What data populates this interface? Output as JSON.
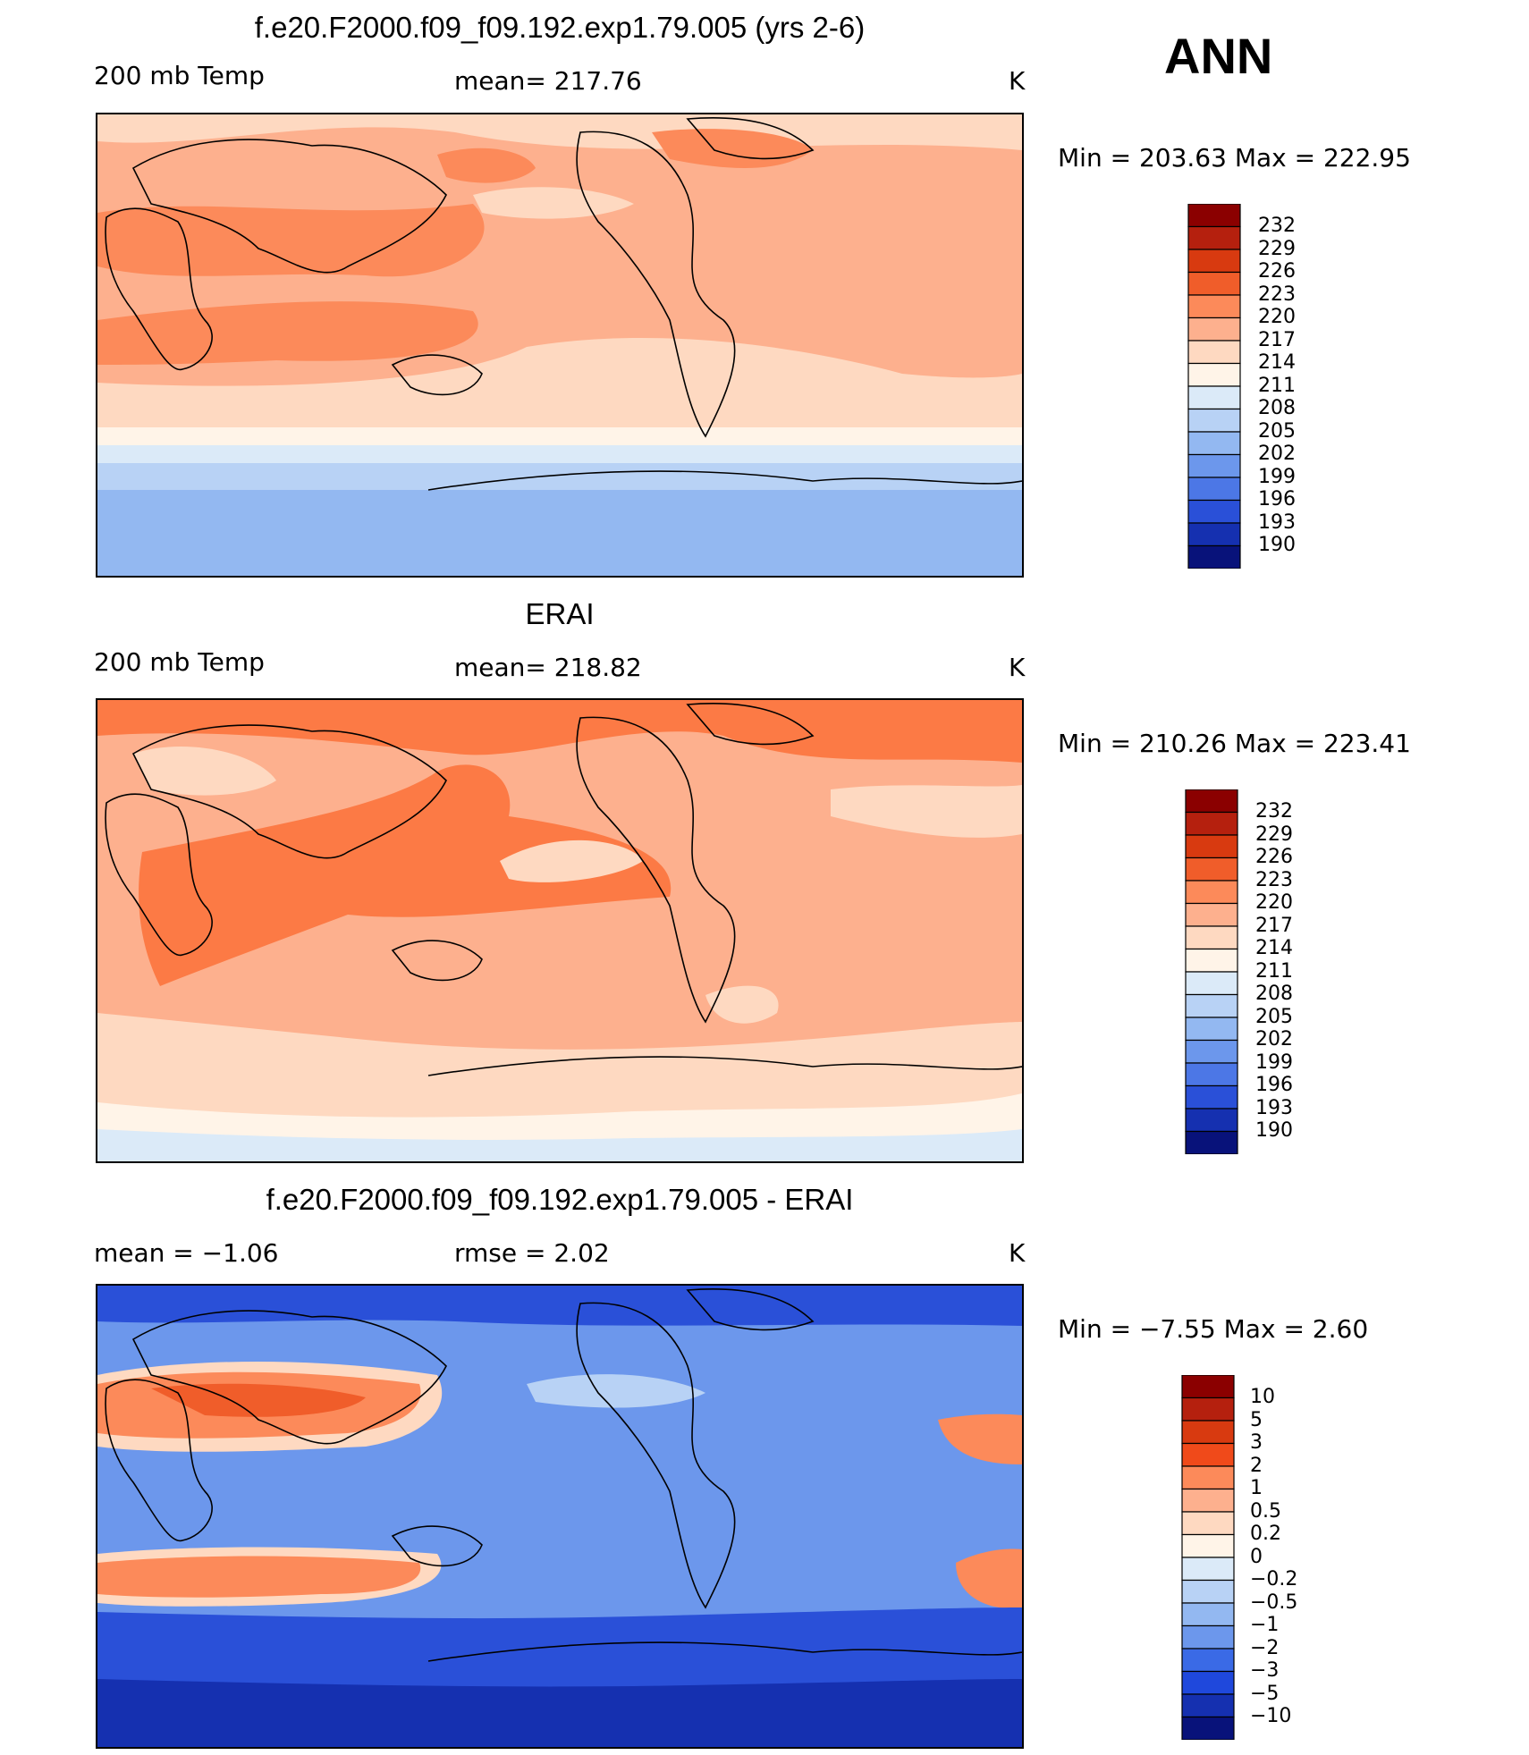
{
  "season": "ANN",
  "panels": [
    {
      "title": "f.e20.F2000.f09_f09.192.exp1.79.005 (yrs 2-6)",
      "left_label": "200 mb Temp",
      "center_label": "mean= 217.76",
      "units": "K",
      "minmax": "Min  =  203.63  Max  =  222.95",
      "colorbar": {
        "labels": [
          "232",
          "229",
          "226",
          "223",
          "220",
          "217",
          "214",
          "211",
          "208",
          "205",
          "202",
          "199",
          "196",
          "193",
          "190"
        ],
        "colors": [
          "#8b0000",
          "#b5200e",
          "#d83a10",
          "#f05d2a",
          "#fc8a5a",
          "#fdb08e",
          "#fed9c1",
          "#fff4e8",
          "#dbeaf8",
          "#b8d2f5",
          "#93b8f1",
          "#6c97ec",
          "#4c77e6",
          "#2a50d8",
          "#1530b0",
          "#08127a"
        ]
      },
      "map_fill": {
        "base": "#fdb08e",
        "warm": "#fc8a5a",
        "cool": "#fed9c1",
        "cold1": "#fff4e8",
        "cold2": "#dbeaf8",
        "cold3": "#b8d2f5",
        "cold4": "#93b8f1"
      }
    },
    {
      "title": "ERAI",
      "left_label": "200 mb Temp",
      "center_label": "mean= 218.82",
      "units": "K",
      "minmax": "Min  =  210.26  Max  =  223.41",
      "colorbar": {
        "labels": [
          "232",
          "229",
          "226",
          "223",
          "220",
          "217",
          "214",
          "211",
          "208",
          "205",
          "202",
          "199",
          "196",
          "193",
          "190"
        ],
        "colors": [
          "#8b0000",
          "#b5200e",
          "#d83a10",
          "#f05d2a",
          "#fc8a5a",
          "#fdb08e",
          "#fed9c1",
          "#fff4e8",
          "#dbeaf8",
          "#b8d2f5",
          "#93b8f1",
          "#6c97ec",
          "#4c77e6",
          "#2a50d8",
          "#1530b0",
          "#08127a"
        ]
      },
      "map_fill": {
        "base": "#fdb08e",
        "warm": "#fc7a45",
        "cool": "#fed9c1",
        "cold1": "#fff4e8",
        "cold2": "#dbeaf8"
      }
    },
    {
      "title": "f.e20.F2000.f09_f09.192.exp1.79.005 - ERAI",
      "left_label": "mean =   −1.06",
      "center_label": "rmse =    2.02",
      "units": "K",
      "minmax": "Min  =   −7.55  Max  =    2.60",
      "colorbar": {
        "labels": [
          "10",
          "5",
          "3",
          "2",
          "1",
          "0.5",
          "0.2",
          "0",
          "−0.2",
          "−0.5",
          "−1",
          "−2",
          "−3",
          "−5",
          "−10"
        ],
        "colors": [
          "#8b0000",
          "#b5200e",
          "#d83a10",
          "#f04a1a",
          "#fc8a5a",
          "#fdb08e",
          "#fed9c1",
          "#fff4e8",
          "#dbeaf8",
          "#b8d2f5",
          "#93b8f1",
          "#6c97ec",
          "#3a6ae6",
          "#1f48dc",
          "#1530b0",
          "#08127a"
        ]
      },
      "map_fill": {
        "base": "#6c97ec",
        "warm": "#f05d2a",
        "cool": "#b8d2f5",
        "cold": "#2a50d8",
        "coldest": "#1530b0"
      }
    }
  ]
}
